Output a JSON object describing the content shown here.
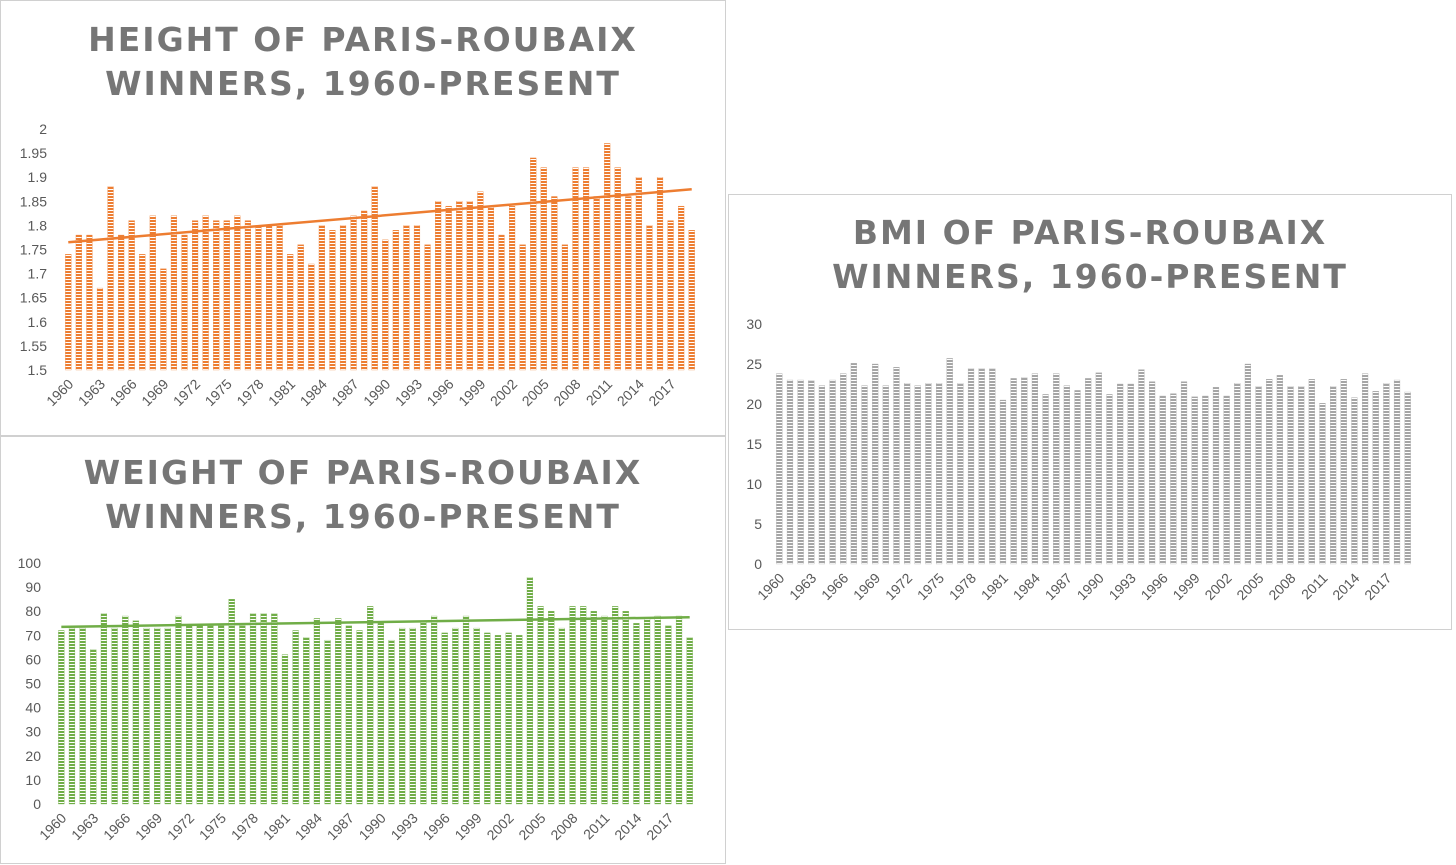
{
  "chart_data": [
    {
      "id": "height",
      "type": "bar",
      "title_line1": "HEIGHT OF PARIS-ROUBAIX",
      "title_line2": "WINNERS, 1960-PRESENT",
      "xlabel": "",
      "ylabel": "",
      "ylim": [
        1.5,
        2.0
      ],
      "yticks": [
        "1.5",
        "1.55",
        "1.6",
        "1.65",
        "1.7",
        "1.75",
        "1.8",
        "1.85",
        "1.9",
        "1.95",
        "2"
      ],
      "xtick_labels": [
        "1960",
        "1963",
        "1966",
        "1969",
        "1972",
        "1975",
        "1978",
        "1981",
        "1984",
        "1987",
        "1990",
        "1993",
        "1996",
        "1999",
        "2002",
        "2005",
        "2008",
        "2011",
        "2014",
        "2017"
      ],
      "categories": [
        "1960",
        "1961",
        "1962",
        "1963",
        "1964",
        "1965",
        "1966",
        "1967",
        "1968",
        "1969",
        "1970",
        "1971",
        "1972",
        "1973",
        "1974",
        "1975",
        "1976",
        "1977",
        "1978",
        "1979",
        "1980",
        "1981",
        "1982",
        "1983",
        "1984",
        "1985",
        "1986",
        "1987",
        "1988",
        "1989",
        "1990",
        "1991",
        "1992",
        "1993",
        "1994",
        "1995",
        "1996",
        "1997",
        "1998",
        "1999",
        "2000",
        "2001",
        "2002",
        "2003",
        "2004",
        "2005",
        "2006",
        "2007",
        "2008",
        "2009",
        "2010",
        "2011",
        "2012",
        "2013",
        "2014",
        "2015",
        "2016",
        "2017",
        "2018",
        "2019"
      ],
      "values": [
        1.74,
        1.78,
        1.78,
        1.67,
        1.88,
        1.78,
        1.81,
        1.74,
        1.82,
        1.71,
        1.82,
        1.78,
        1.81,
        1.82,
        1.81,
        1.81,
        1.82,
        1.81,
        1.8,
        1.8,
        1.8,
        1.74,
        1.76,
        1.72,
        1.8,
        1.79,
        1.8,
        1.82,
        1.83,
        1.88,
        1.77,
        1.79,
        1.8,
        1.8,
        1.76,
        1.85,
        1.84,
        1.85,
        1.85,
        1.87,
        1.84,
        1.78,
        1.84,
        1.76,
        1.94,
        1.92,
        1.86,
        1.76,
        1.92,
        1.92,
        1.86,
        1.97,
        1.92,
        1.86,
        1.9,
        1.8,
        1.9,
        1.81,
        1.84,
        1.79
      ],
      "trendline": {
        "start": 1.765,
        "end": 1.875
      },
      "color": "#ED7D31"
    },
    {
      "id": "weight",
      "type": "bar",
      "title_line1": "WEIGHT OF PARIS-ROUBAIX",
      "title_line2": "WINNERS, 1960-PRESENT",
      "xlabel": "",
      "ylabel": "",
      "ylim": [
        0,
        100
      ],
      "yticks": [
        "0",
        "10",
        "20",
        "30",
        "40",
        "50",
        "60",
        "70",
        "80",
        "90",
        "100"
      ],
      "xtick_labels": [
        "1960",
        "1963",
        "1966",
        "1969",
        "1972",
        "1975",
        "1978",
        "1981",
        "1984",
        "1987",
        "1990",
        "1993",
        "1996",
        "1999",
        "2002",
        "2005",
        "2008",
        "2011",
        "2014",
        "2017"
      ],
      "categories": [
        "1960",
        "1961",
        "1962",
        "1963",
        "1964",
        "1965",
        "1966",
        "1967",
        "1968",
        "1969",
        "1970",
        "1971",
        "1972",
        "1973",
        "1974",
        "1975",
        "1976",
        "1977",
        "1978",
        "1979",
        "1980",
        "1981",
        "1982",
        "1983",
        "1984",
        "1985",
        "1986",
        "1987",
        "1988",
        "1989",
        "1990",
        "1991",
        "1992",
        "1993",
        "1994",
        "1995",
        "1996",
        "1997",
        "1998",
        "1999",
        "2000",
        "2001",
        "2002",
        "2003",
        "2004",
        "2005",
        "2006",
        "2007",
        "2008",
        "2009",
        "2010",
        "2011",
        "2012",
        "2013",
        "2014",
        "2015",
        "2016",
        "2017",
        "2018",
        "2019"
      ],
      "values": [
        72,
        73,
        73,
        64,
        79,
        73,
        78,
        76,
        73,
        73,
        73,
        78,
        74,
        74,
        74,
        74,
        85,
        74,
        79,
        79,
        79,
        62,
        72,
        69,
        77,
        68,
        77,
        74,
        72,
        82,
        75,
        68,
        73,
        73,
        76,
        78,
        71,
        73,
        78,
        73,
        71,
        70,
        71,
        70,
        94,
        82,
        80,
        73,
        82,
        82,
        80,
        78,
        82,
        80,
        75,
        77,
        78,
        74,
        78,
        69
      ],
      "trendline": {
        "start": 73.5,
        "end": 77.5
      },
      "color": "#70AD47"
    },
    {
      "id": "bmi",
      "type": "bar",
      "title_line1": "BMI OF PARIS-ROUBAIX",
      "title_line2": "WINNERS, 1960-PRESENT",
      "xlabel": "",
      "ylabel": "",
      "ylim": [
        0,
        30
      ],
      "yticks": [
        "0",
        "5",
        "10",
        "15",
        "20",
        "25",
        "30"
      ],
      "xtick_labels": [
        "1960",
        "1963",
        "1966",
        "1969",
        "1972",
        "1975",
        "1978",
        "1981",
        "1984",
        "1987",
        "1990",
        "1993",
        "1996",
        "1999",
        "2002",
        "2005",
        "2008",
        "2011",
        "2014",
        "2017"
      ],
      "categories": [
        "1960",
        "1961",
        "1962",
        "1963",
        "1964",
        "1965",
        "1966",
        "1967",
        "1968",
        "1969",
        "1970",
        "1971",
        "1972",
        "1973",
        "1974",
        "1975",
        "1976",
        "1977",
        "1978",
        "1979",
        "1980",
        "1981",
        "1982",
        "1983",
        "1984",
        "1985",
        "1986",
        "1987",
        "1988",
        "1989",
        "1990",
        "1991",
        "1992",
        "1993",
        "1994",
        "1995",
        "1996",
        "1997",
        "1998",
        "1999",
        "2000",
        "2001",
        "2002",
        "2003",
        "2004",
        "2005",
        "2006",
        "2007",
        "2008",
        "2009",
        "2010",
        "2011",
        "2012",
        "2013",
        "2014",
        "2015",
        "2016",
        "2017",
        "2018",
        "2019"
      ],
      "values": [
        23.8,
        23.0,
        23.0,
        22.9,
        22.3,
        23.0,
        23.8,
        25.1,
        22.3,
        25.0,
        22.3,
        24.6,
        22.6,
        22.3,
        22.6,
        22.6,
        25.7,
        22.6,
        24.4,
        24.4,
        24.4,
        20.5,
        23.2,
        23.3,
        23.8,
        21.2,
        23.8,
        22.3,
        21.7,
        23.2,
        23.9,
        21.2,
        22.5,
        22.5,
        24.3,
        22.8,
        21.0,
        21.3,
        22.8,
        20.9,
        21.0,
        22.1,
        21.0,
        22.6,
        25.0,
        22.2,
        23.1,
        23.6,
        22.2,
        22.2,
        23.1,
        20.1,
        22.2,
        23.1,
        20.8,
        23.8,
        21.6,
        22.6,
        23.0,
        21.5
      ],
      "color": "#A5A5A5"
    }
  ]
}
